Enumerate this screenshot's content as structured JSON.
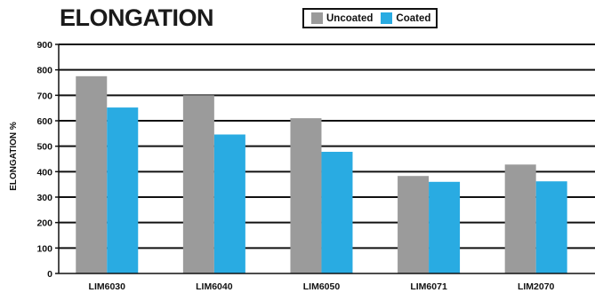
{
  "chart_data": {
    "type": "bar",
    "title": "ELONGATION",
    "xlabel": "",
    "ylabel": "ELONGATION %",
    "ylim": [
      0,
      900
    ],
    "yticks": [
      "0",
      "100",
      "200",
      "300",
      "400",
      "500",
      "600",
      "700",
      "800",
      "900"
    ],
    "categories": [
      "LIM6030",
      "LIM6040",
      "LIM6050",
      "LIM6071",
      "LIM2070"
    ],
    "series": [
      {
        "name": "Uncoated",
        "color": "#9b9b9b",
        "values": [
          775,
          700,
          610,
          383,
          428
        ]
      },
      {
        "name": "Coated",
        "color": "#29abe2",
        "values": [
          652,
          546,
          478,
          360,
          362
        ]
      }
    ],
    "grid": true,
    "legend_position": "top-center"
  }
}
